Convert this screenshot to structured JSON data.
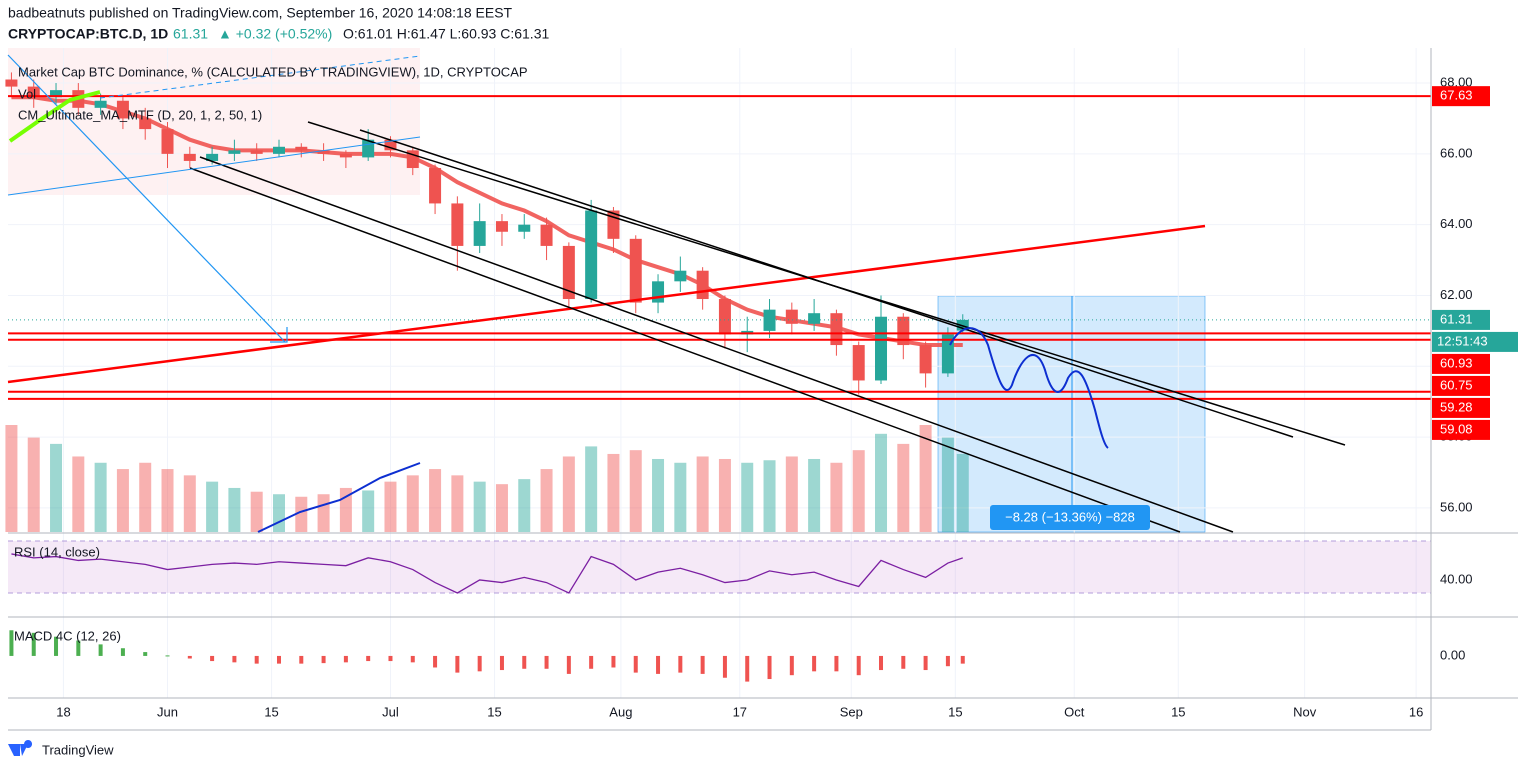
{
  "header": {
    "publisher": "badbeatnuts published on TradingView.com, September 16, 2020 14:08:18 EEST",
    "symbol": "CRYPTOCAP:BTC.D, 1D",
    "last": "61.31",
    "change": "▲ +0.32 (+0.52%)",
    "ohlc": "O:61.01 H:61.47 L:60.93 C:61.31"
  },
  "footer": {
    "brand": "TradingView"
  },
  "chart_data": [
    {
      "type": "candlestick",
      "title": "Market Cap BTC Dominance, % (CALCULATED BY TRADINGVIEW), 1D, CRYPTOCAP",
      "volume_label": "Vol",
      "ma_label": "CM_Ultimate_MA_MTF (D, 20, 1, 2, 50, 1)",
      "x": [
        "2020-05-11",
        "2020-05-14",
        "2020-05-17",
        "2020-05-20",
        "2020-05-23",
        "2020-05-26",
        "2020-05-29",
        "2020-06-01",
        "2020-06-04",
        "2020-06-07",
        "2020-06-10",
        "2020-06-13",
        "2020-06-16",
        "2020-06-19",
        "2020-06-22",
        "2020-06-25",
        "2020-06-28",
        "2020-07-01",
        "2020-07-04",
        "2020-07-07",
        "2020-07-10",
        "2020-07-13",
        "2020-07-16",
        "2020-07-19",
        "2020-07-22",
        "2020-07-25",
        "2020-07-28",
        "2020-07-31",
        "2020-08-03",
        "2020-08-06",
        "2020-08-09",
        "2020-08-12",
        "2020-08-15",
        "2020-08-18",
        "2020-08-21",
        "2020-08-24",
        "2020-08-27",
        "2020-08-30",
        "2020-09-02",
        "2020-09-05",
        "2020-09-08",
        "2020-09-11",
        "2020-09-14",
        "2020-09-16"
      ],
      "open": [
        68.1,
        67.9,
        67.6,
        67.8,
        67.3,
        67.5,
        67.0,
        66.7,
        66.0,
        65.8,
        66.0,
        66.1,
        66.0,
        66.2,
        66.1,
        66.0,
        65.9,
        66.4,
        66.1,
        65.6,
        64.6,
        63.4,
        64.1,
        63.8,
        64.0,
        63.4,
        61.9,
        64.4,
        63.6,
        61.8,
        62.4,
        62.7,
        61.9,
        60.9,
        61.0,
        61.6,
        61.2,
        61.5,
        60.6,
        59.6,
        61.4,
        60.6,
        59.8,
        61.01
      ],
      "high": [
        68.3,
        68.1,
        68.0,
        68.0,
        67.7,
        67.6,
        67.3,
        66.9,
        66.2,
        66.2,
        66.4,
        66.3,
        66.4,
        66.3,
        66.3,
        66.1,
        66.7,
        66.5,
        66.2,
        65.7,
        64.8,
        64.6,
        64.3,
        64.3,
        64.2,
        63.5,
        64.7,
        64.5,
        63.7,
        62.6,
        63.1,
        62.8,
        62.0,
        61.4,
        61.9,
        61.8,
        61.9,
        61.6,
        60.7,
        62.0,
        61.5,
        60.7,
        61.1,
        61.47
      ],
      "low": [
        67.6,
        67.3,
        67.4,
        67.1,
        67.1,
        66.7,
        66.4,
        65.6,
        65.6,
        65.7,
        65.8,
        65.8,
        65.9,
        65.9,
        65.8,
        65.6,
        65.8,
        65.9,
        65.4,
        64.3,
        62.7,
        63.2,
        63.4,
        63.6,
        63.0,
        61.6,
        61.8,
        63.2,
        61.5,
        61.5,
        62.1,
        61.6,
        60.5,
        60.4,
        60.8,
        60.9,
        61.0,
        60.3,
        59.2,
        59.5,
        60.2,
        59.4,
        59.7,
        60.93
      ],
      "close": [
        67.9,
        67.6,
        67.8,
        67.3,
        67.5,
        67.0,
        66.7,
        66.0,
        65.8,
        66.0,
        66.1,
        66.0,
        66.2,
        66.1,
        66.0,
        65.9,
        66.4,
        66.1,
        65.6,
        64.6,
        63.4,
        64.1,
        63.8,
        64.0,
        63.4,
        61.9,
        64.4,
        63.6,
        61.8,
        62.4,
        62.7,
        61.9,
        60.9,
        61.0,
        61.6,
        61.2,
        61.5,
        60.6,
        59.6,
        61.4,
        60.6,
        59.8,
        60.9,
        61.31
      ],
      "ma": [
        67.6,
        67.6,
        67.5,
        67.5,
        67.4,
        67.2,
        67.0,
        66.7,
        66.4,
        66.2,
        66.1,
        66.1,
        66.1,
        66.1,
        66.05,
        66.0,
        66.0,
        66.0,
        65.9,
        65.6,
        65.2,
        64.9,
        64.6,
        64.4,
        64.1,
        63.7,
        63.5,
        63.3,
        63.0,
        62.8,
        62.6,
        62.3,
        61.9,
        61.6,
        61.4,
        61.3,
        61.2,
        61.1,
        60.9,
        60.8,
        60.7,
        60.6,
        60.6,
        60.6
      ],
      "volume": [
        85,
        75,
        70,
        60,
        55,
        50,
        55,
        50,
        45,
        40,
        35,
        32,
        30,
        28,
        30,
        35,
        33,
        40,
        45,
        50,
        45,
        40,
        38,
        42,
        50,
        60,
        68,
        62,
        65,
        58,
        55,
        60,
        58,
        55,
        57,
        60,
        58,
        55,
        65,
        78,
        70,
        85,
        75,
        62
      ],
      "up_color": "#26a69a",
      "down_color": "#ef5350",
      "ma_color": "#f05350",
      "level_color": "#ff0000",
      "xlim": [
        "2020-05-10",
        "2020-11-18"
      ],
      "xticks": [
        {
          "value": "2020-05-18",
          "label": "18"
        },
        {
          "value": "2020-06-01",
          "label": "Jun"
        },
        {
          "value": "2020-06-15",
          "label": "15"
        },
        {
          "value": "2020-07-01",
          "label": "Jul"
        },
        {
          "value": "2020-07-15",
          "label": "15"
        },
        {
          "value": "2020-08-01",
          "label": "Aug"
        },
        {
          "value": "2020-08-17",
          "label": "17"
        },
        {
          "value": "2020-09-01",
          "label": "Sep"
        },
        {
          "value": "2020-09-15",
          "label": "15"
        },
        {
          "value": "2020-10-01",
          "label": "Oct"
        },
        {
          "value": "2020-10-15",
          "label": "15"
        },
        {
          "value": "2020-11-01",
          "label": "Nov"
        },
        {
          "value": "2020-11-16",
          "label": "16"
        }
      ],
      "ylim": [
        55.32,
        68.99
      ],
      "yticks": [
        {
          "value": 56,
          "label": "56.00"
        },
        {
          "value": 58,
          "label": "58.00"
        },
        {
          "value": 60,
          "label": "60.00"
        },
        {
          "value": 62,
          "label": "62.00"
        },
        {
          "value": 64,
          "label": "64.00"
        },
        {
          "value": 66,
          "label": "66.00"
        },
        {
          "value": 68,
          "label": "68.00"
        }
      ],
      "grid": true,
      "levels": [
        67.63,
        60.93,
        60.75,
        59.28,
        59.08
      ],
      "last_price": 61.31,
      "countdown": "12:51:43",
      "measure_label": "−8.28 (−13.36%) −828"
    },
    {
      "type": "line",
      "title": "RSI (14, close)",
      "color": "#7b1fa2",
      "values": [
        60,
        57,
        58,
        55,
        56,
        54,
        52,
        48,
        50,
        52,
        53,
        52,
        54,
        53,
        52,
        51,
        57,
        54,
        48,
        38,
        30,
        40,
        38,
        42,
        38,
        30,
        58,
        52,
        40,
        46,
        49,
        44,
        38,
        40,
        47,
        44,
        46,
        40,
        35,
        55,
        48,
        42,
        53,
        57
      ],
      "band": [
        30,
        70
      ],
      "ylim": [
        12.3,
        73.8
      ],
      "yticks": [
        {
          "value": 40,
          "label": "40.00"
        }
      ]
    },
    {
      "type": "bar",
      "title": "MACD 4C (12, 26)",
      "up_color": "#4caf50",
      "down_color": "#ef5350",
      "values": [
        1.0,
        0.9,
        0.75,
        0.6,
        0.45,
        0.3,
        0.15,
        0.02,
        -0.1,
        -0.2,
        -0.25,
        -0.3,
        -0.3,
        -0.3,
        -0.28,
        -0.25,
        -0.2,
        -0.2,
        -0.25,
        -0.45,
        -0.65,
        -0.6,
        -0.55,
        -0.5,
        -0.5,
        -0.7,
        -0.5,
        -0.45,
        -0.65,
        -0.7,
        -0.65,
        -0.7,
        -0.85,
        -1.0,
        -0.9,
        -0.75,
        -0.6,
        -0.6,
        -0.75,
        -0.55,
        -0.5,
        -0.55,
        -0.4,
        -0.3
      ],
      "ylim": [
        -1.6,
        1.4
      ],
      "yticks": [
        {
          "value": 0,
          "label": "0.00"
        }
      ]
    }
  ]
}
